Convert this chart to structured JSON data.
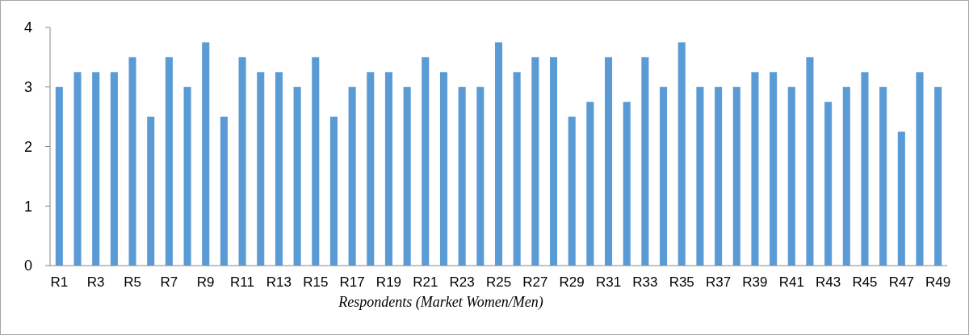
{
  "chart_data": {
    "type": "bar",
    "xlabel": "Respondents (Market Women/Men)",
    "categories": [
      "R1",
      null,
      "R3",
      null,
      "R5",
      null,
      "R7",
      null,
      "R9",
      null,
      "R11",
      null,
      "R13",
      null,
      "R15",
      null,
      "R17",
      null,
      "R19",
      null,
      "R21",
      null,
      "R23",
      null,
      "R25",
      null,
      "R27",
      null,
      "R29",
      null,
      "R31",
      null,
      "R33",
      null,
      "R35",
      null,
      "R37",
      null,
      "R39",
      null,
      "R41",
      null,
      "R43",
      null,
      "R45",
      null,
      "R47",
      null,
      "R49"
    ],
    "values": [
      3,
      3.25,
      3.25,
      3.25,
      3.5,
      2.5,
      3.5,
      3,
      3.75,
      2.5,
      3.5,
      3.25,
      3.25,
      3,
      3.5,
      2.5,
      3,
      3.25,
      3.25,
      3,
      3.5,
      3.25,
      3,
      3,
      3.75,
      3.25,
      3.5,
      3.5,
      2.5,
      2.75,
      3.5,
      2.75,
      3.5,
      3,
      3.75,
      3,
      3,
      3,
      3.25,
      3.25,
      3,
      3.5,
      2.75,
      3,
      3.25,
      3,
      2.25,
      3.25,
      3
    ],
    "color": "#5b9bd5",
    "ylim": [
      0,
      4
    ],
    "yticks": [
      0,
      1,
      2,
      3,
      4
    ],
    "grid": false
  }
}
